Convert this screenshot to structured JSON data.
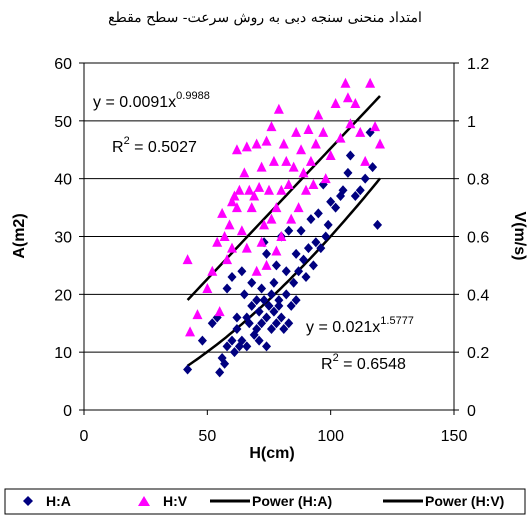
{
  "chart_data": {
    "type": "scatter",
    "title": "امتداد منحنی سنجه دبی به روش سرعت- سطح مقطع",
    "xlabel": "H(cm)",
    "ylabel_left": "A(m2)",
    "ylabel_right": "V(m/s)",
    "xlim": [
      0,
      150
    ],
    "ylim_left": [
      0,
      60
    ],
    "ylim_right": [
      0,
      1.2
    ],
    "x_ticks": [
      "0",
      "50",
      "100",
      "150"
    ],
    "y_ticks_left": [
      "0",
      "10",
      "20",
      "30",
      "40",
      "50",
      "60"
    ],
    "y_ticks_right": [
      "0",
      "0.2",
      "0.4",
      "0.6",
      "0.8",
      "1",
      "1.2"
    ],
    "grid": "horizontal",
    "legend_position": "bottom",
    "series": [
      {
        "name": "H:A",
        "marker": "diamond",
        "color": "#000080",
        "axis": "left",
        "points": [
          [
            42,
            7
          ],
          [
            48,
            12
          ],
          [
            52,
            15
          ],
          [
            54,
            16
          ],
          [
            55,
            6.5
          ],
          [
            56,
            9
          ],
          [
            57,
            8
          ],
          [
            58,
            11
          ],
          [
            60,
            12
          ],
          [
            61,
            10
          ],
          [
            62,
            14
          ],
          [
            63,
            11
          ],
          [
            64,
            12
          ],
          [
            65,
            20
          ],
          [
            66,
            16
          ],
          [
            67,
            15
          ],
          [
            68,
            18
          ],
          [
            69,
            13
          ],
          [
            70,
            14
          ],
          [
            70,
            19
          ],
          [
            71,
            12
          ],
          [
            71,
            17
          ],
          [
            72,
            15
          ],
          [
            73,
            19
          ],
          [
            73,
            29
          ],
          [
            74,
            16
          ],
          [
            74,
            11
          ],
          [
            75,
            18
          ],
          [
            76,
            14
          ],
          [
            77,
            22
          ],
          [
            77,
            17
          ],
          [
            78,
            15
          ],
          [
            78,
            25
          ],
          [
            79,
            19
          ],
          [
            80,
            16
          ],
          [
            80,
            30
          ],
          [
            81,
            14
          ],
          [
            82,
            20
          ],
          [
            82,
            24
          ],
          [
            83,
            15
          ],
          [
            83,
            31
          ],
          [
            84,
            18
          ],
          [
            85,
            22
          ],
          [
            86,
            19
          ],
          [
            86,
            27
          ],
          [
            87,
            24
          ],
          [
            88,
            31
          ],
          [
            89,
            26
          ],
          [
            90,
            23
          ],
          [
            91,
            28
          ],
          [
            92,
            33
          ],
          [
            93,
            25
          ],
          [
            94,
            29
          ],
          [
            95,
            34
          ],
          [
            96,
            28
          ],
          [
            97,
            39
          ],
          [
            98,
            30
          ],
          [
            99,
            32
          ],
          [
            100,
            36
          ],
          [
            102,
            35
          ],
          [
            104,
            37
          ],
          [
            105,
            38
          ],
          [
            107,
            41
          ],
          [
            108,
            44
          ],
          [
            110,
            37
          ],
          [
            112,
            38
          ],
          [
            114,
            40
          ],
          [
            116,
            48
          ],
          [
            117,
            42
          ],
          [
            119,
            32
          ],
          [
            58,
            21
          ],
          [
            60,
            23
          ],
          [
            62,
            16
          ],
          [
            64,
            24
          ],
          [
            66,
            11
          ],
          [
            68,
            22
          ],
          [
            72,
            21
          ],
          [
            74,
            27
          ],
          [
            76,
            20
          ],
          [
            79,
            18
          ]
        ]
      },
      {
        "name": "H:V",
        "marker": "triangle",
        "color": "#ff00ff",
        "axis": "right",
        "points": [
          [
            42,
            0.52
          ],
          [
            43,
            0.27
          ],
          [
            46,
            0.33
          ],
          [
            50,
            0.42
          ],
          [
            52,
            0.48
          ],
          [
            54,
            0.58
          ],
          [
            55,
            0.34
          ],
          [
            56,
            0.68
          ],
          [
            57,
            0.6
          ],
          [
            58,
            0.52
          ],
          [
            59,
            0.64
          ],
          [
            60,
            0.72
          ],
          [
            61,
            0.74
          ],
          [
            62,
            0.9
          ],
          [
            63,
            0.76
          ],
          [
            64,
            0.62
          ],
          [
            65,
            0.82
          ],
          [
            66,
            0.91
          ],
          [
            67,
            0.76
          ],
          [
            68,
            0.7
          ],
          [
            69,
            0.74
          ],
          [
            70,
            0.92
          ],
          [
            71,
            0.77
          ],
          [
            72,
            0.84
          ],
          [
            73,
            0.64
          ],
          [
            74,
            0.93
          ],
          [
            75,
            0.76
          ],
          [
            76,
            0.98
          ],
          [
            77,
            0.86
          ],
          [
            78,
            0.7
          ],
          [
            79,
            1.04
          ],
          [
            80,
            0.76
          ],
          [
            81,
            0.92
          ],
          [
            82,
            0.86
          ],
          [
            83,
            0.78
          ],
          [
            84,
            0.66
          ],
          [
            85,
            0.84
          ],
          [
            86,
            0.96
          ],
          [
            87,
            0.7
          ],
          [
            88,
            0.9
          ],
          [
            89,
            0.82
          ],
          [
            90,
            0.76
          ],
          [
            91,
            0.97
          ],
          [
            92,
            0.86
          ],
          [
            93,
            0.78
          ],
          [
            94,
            0.92
          ],
          [
            95,
            1.02
          ],
          [
            97,
            0.96
          ],
          [
            98,
            0.8
          ],
          [
            100,
            0.88
          ],
          [
            102,
            1.06
          ],
          [
            104,
            0.94
          ],
          [
            106,
            1.13
          ],
          [
            107,
            1.08
          ],
          [
            108,
            0.99
          ],
          [
            110,
            1.06
          ],
          [
            112,
            0.96
          ],
          [
            114,
            0.86
          ],
          [
            116,
            1.13
          ],
          [
            118,
            0.98
          ],
          [
            120,
            0.92
          ],
          [
            66,
            0.56
          ],
          [
            70,
            0.48
          ],
          [
            72,
            0.58
          ],
          [
            74,
            0.5
          ],
          [
            76,
            0.66
          ],
          [
            78,
            0.55
          ],
          [
            80,
            0.6
          ],
          [
            62,
            0.7
          ],
          [
            60,
            0.56
          ]
        ]
      }
    ],
    "trendlines": [
      {
        "name": "Power (H:A)",
        "axis": "left",
        "coef": 0.021,
        "exp": 1.5777,
        "x_range": [
          42,
          120
        ],
        "equation_base": "y = 0.021x",
        "equation_exp": "1.5777",
        "r2_base": "R",
        "r2_sup": "2",
        "r2_value": " = 0.6548"
      },
      {
        "name": "Power (H:V)",
        "axis": "right",
        "coef": 0.0091,
        "exp": 0.9988,
        "x_range": [
          42,
          120
        ],
        "equation_base": "y = 0.0091x",
        "equation_exp": "0.9988",
        "r2_base": "R",
        "r2_sup": "2",
        "r2_value": " = 0.5027"
      }
    ]
  }
}
